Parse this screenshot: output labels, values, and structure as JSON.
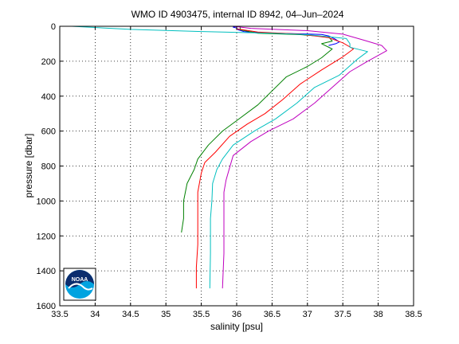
{
  "chart_data": {
    "type": "line",
    "title": "WMO ID 4903475, internal ID 8942, 04–Jun–2024",
    "xlabel": "salinity [psu]",
    "ylabel": "pressure [dbar]",
    "xlim": [
      33.5,
      38.5
    ],
    "ylim": [
      1600,
      0
    ],
    "y_reversed": true,
    "grid": true,
    "grid_style": "dotted",
    "xticks": [
      "33.5",
      "34",
      "34.5",
      "35",
      "35.5",
      "36",
      "36.5",
      "37",
      "37.5",
      "38",
      "38.5"
    ],
    "yticks": [
      "0",
      "200",
      "400",
      "600",
      "800",
      "1000",
      "1200",
      "1400",
      "1600"
    ],
    "logo": {
      "text": "NOAA"
    },
    "series": [
      {
        "color": "#0000ff",
        "points": [
          [
            36.0,
            0
          ],
          [
            35.95,
            5
          ],
          [
            36.0,
            10
          ],
          [
            36.02,
            20
          ],
          [
            36.1,
            30
          ],
          [
            36.4,
            38
          ],
          [
            36.8,
            42
          ],
          [
            37.2,
            47
          ],
          [
            37.3,
            55
          ],
          [
            37.4,
            75
          ],
          [
            37.45,
            90
          ],
          [
            37.4,
            100
          ],
          [
            37.3,
            110
          ]
        ]
      },
      {
        "color": "#008000",
        "points": [
          [
            36.05,
            0
          ],
          [
            36.05,
            20
          ],
          [
            36.3,
            40
          ],
          [
            36.9,
            48
          ],
          [
            37.3,
            60
          ],
          [
            37.35,
            85
          ],
          [
            37.2,
            100
          ],
          [
            37.35,
            130
          ],
          [
            37.2,
            180
          ],
          [
            37.0,
            230
          ],
          [
            36.7,
            290
          ],
          [
            36.5,
            370
          ],
          [
            36.3,
            450
          ],
          [
            36.0,
            540
          ],
          [
            35.8,
            600
          ],
          [
            35.6,
            680
          ],
          [
            35.45,
            760
          ],
          [
            35.4,
            820
          ],
          [
            35.3,
            900
          ],
          [
            35.25,
            1000
          ],
          [
            35.25,
            1100
          ],
          [
            35.22,
            1180
          ]
        ]
      },
      {
        "color": "#ff0000",
        "points": [
          [
            36.0,
            0
          ],
          [
            36.0,
            15
          ],
          [
            36.3,
            33
          ],
          [
            36.9,
            45
          ],
          [
            37.3,
            65
          ],
          [
            37.5,
            95
          ],
          [
            37.65,
            130
          ],
          [
            37.5,
            175
          ],
          [
            37.2,
            250
          ],
          [
            36.9,
            330
          ],
          [
            36.65,
            420
          ],
          [
            36.4,
            500
          ],
          [
            36.15,
            560
          ],
          [
            35.9,
            630
          ],
          [
            35.7,
            720
          ],
          [
            35.55,
            780
          ],
          [
            35.5,
            840
          ],
          [
            35.45,
            950
          ],
          [
            35.45,
            1100
          ],
          [
            35.45,
            1250
          ],
          [
            35.43,
            1380
          ],
          [
            35.43,
            1500
          ]
        ]
      },
      {
        "color": "#00bfbf",
        "points": [
          [
            33.67,
            0
          ],
          [
            34.5,
            18
          ],
          [
            35.5,
            30
          ],
          [
            36.5,
            40
          ],
          [
            37.0,
            48
          ],
          [
            37.55,
            70
          ],
          [
            37.6,
            100
          ],
          [
            37.6,
            120
          ],
          [
            37.85,
            145
          ],
          [
            37.7,
            190
          ],
          [
            37.45,
            280
          ],
          [
            37.1,
            350
          ],
          [
            36.85,
            440
          ],
          [
            36.55,
            530
          ],
          [
            36.25,
            600
          ],
          [
            35.95,
            680
          ],
          [
            35.8,
            760
          ],
          [
            35.72,
            820
          ],
          [
            35.66,
            900
          ],
          [
            35.65,
            1000
          ],
          [
            35.63,
            1100
          ],
          [
            35.63,
            1300
          ],
          [
            35.62,
            1500
          ]
        ]
      },
      {
        "color": "#bf00bf",
        "points": [
          [
            35.95,
            0
          ],
          [
            36.2,
            12
          ],
          [
            37.0,
            25
          ],
          [
            37.5,
            45
          ],
          [
            37.8,
            80
          ],
          [
            38.05,
            110
          ],
          [
            38.12,
            140
          ],
          [
            37.85,
            200
          ],
          [
            37.6,
            260
          ],
          [
            37.35,
            350
          ],
          [
            37.1,
            440
          ],
          [
            36.8,
            530
          ],
          [
            36.45,
            600
          ],
          [
            36.2,
            660
          ],
          [
            35.95,
            740
          ],
          [
            35.9,
            810
          ],
          [
            35.85,
            880
          ],
          [
            35.82,
            950
          ],
          [
            35.82,
            1100
          ],
          [
            35.82,
            1300
          ],
          [
            35.8,
            1500
          ]
        ]
      }
    ]
  }
}
